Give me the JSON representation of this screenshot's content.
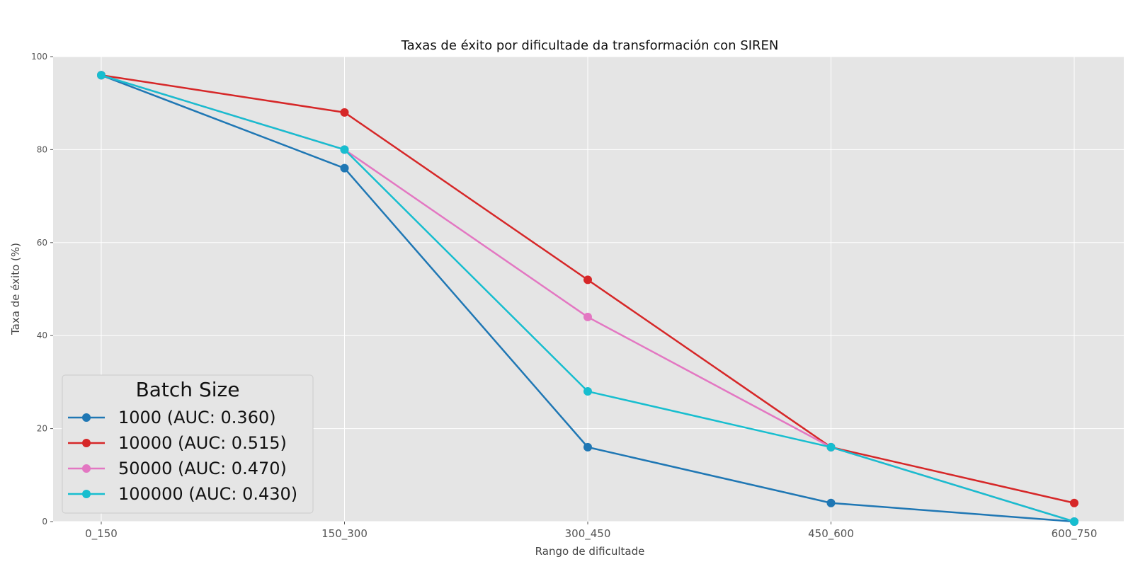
{
  "chart_data": {
    "type": "line",
    "title": "Taxas de éxito por dificultade da transformación con SIREN",
    "xlabel": "Rango de dificultade",
    "ylabel": "Taxa de éxito (%)",
    "categories": [
      "0_150",
      "150_300",
      "300_450",
      "450_600",
      "600_750"
    ],
    "ylim": [
      0,
      100
    ],
    "yticks": [
      0,
      20,
      40,
      60,
      80,
      100
    ],
    "grid": true,
    "legend": {
      "title": "Batch Size",
      "placement": "lower-left"
    },
    "series": [
      {
        "name": "1000 (AUC: 0.360)",
        "color": "#1f77b4",
        "values": [
          96,
          76,
          16,
          4,
          0
        ]
      },
      {
        "name": "10000 (AUC: 0.515)",
        "color": "#d62728",
        "values": [
          96,
          88,
          52,
          16,
          4
        ]
      },
      {
        "name": "50000 (AUC: 0.470)",
        "color": "#e377c2",
        "values": [
          96,
          80,
          44,
          16,
          0
        ]
      },
      {
        "name": "100000 (AUC: 0.430)",
        "color": "#17becf",
        "values": [
          96,
          80,
          28,
          16,
          0
        ]
      }
    ]
  }
}
